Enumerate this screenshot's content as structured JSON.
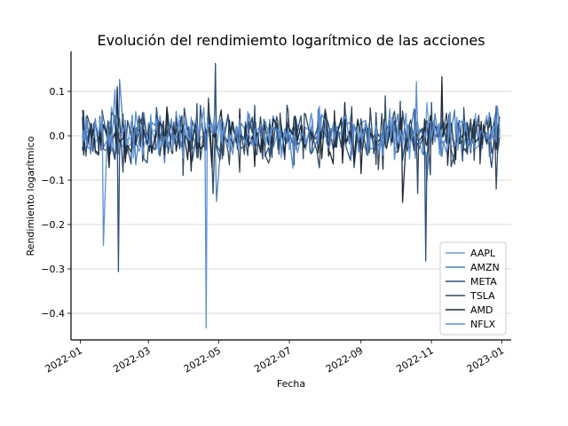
{
  "chart_data": {
    "type": "line",
    "title": "Evolución del rendimiemto logarítmico de las acciones",
    "xlabel": "Fecha",
    "ylabel": "Rendimiento logarítmico",
    "x_ticks": [
      "2022-01",
      "2022-03",
      "2022-05",
      "2022-07",
      "2022-09",
      "2022-11",
      "2023-01"
    ],
    "y_ticks": [
      "0.1",
      "0.0",
      "−0.1",
      "−0.2",
      "−0.3",
      "−0.4"
    ],
    "x_range": [
      "2022-01-03",
      "2022-12-30"
    ],
    "ylim": [
      -0.46,
      0.19
    ],
    "grid": "horizontal",
    "legend_position": "lower-right",
    "series": [
      {
        "name": "AAPL",
        "color": "#6a9ed6",
        "amplitude": 0.02,
        "seed": 11,
        "spikes": [
          [
            "2022-01-28",
            0.065
          ],
          [
            "2022-10-28",
            0.075
          ],
          [
            "2022-11-10",
            0.085
          ]
        ]
      },
      {
        "name": "AMZN",
        "color": "#4c7fc0",
        "amplitude": 0.024,
        "seed": 23,
        "spikes": [
          [
            "2022-02-04",
            0.127
          ],
          [
            "2022-04-29",
            -0.148
          ],
          [
            "2022-10-28",
            -0.1
          ]
        ]
      },
      {
        "name": "META",
        "color": "#2d4f7c",
        "amplitude": 0.03,
        "seed": 37,
        "spikes": [
          [
            "2022-02-03",
            -0.306
          ],
          [
            "2022-04-28",
            0.163
          ],
          [
            "2022-10-27",
            -0.282
          ]
        ]
      },
      {
        "name": "TSLA",
        "color": "#34495e",
        "amplitude": 0.035,
        "seed": 41,
        "spikes": [
          [
            "2022-04-26",
            -0.13
          ],
          [
            "2022-10-20",
            -0.13
          ],
          [
            "2022-12-27",
            -0.12
          ]
        ]
      },
      {
        "name": "AMD",
        "color": "#1f2a36",
        "amplitude": 0.03,
        "seed": 53,
        "spikes": [
          [
            "2022-02-02",
            0.11
          ],
          [
            "2022-10-07",
            -0.15
          ],
          [
            "2022-11-10",
            0.133
          ]
        ]
      },
      {
        "name": "NFLX",
        "color": "#5b8fd4",
        "amplitude": 0.025,
        "seed": 67,
        "spikes": [
          [
            "2022-01-21",
            -0.247
          ],
          [
            "2022-04-20",
            -0.433
          ],
          [
            "2022-10-19",
            0.122
          ],
          [
            "2022-01-31",
            0.104
          ]
        ]
      }
    ]
  }
}
